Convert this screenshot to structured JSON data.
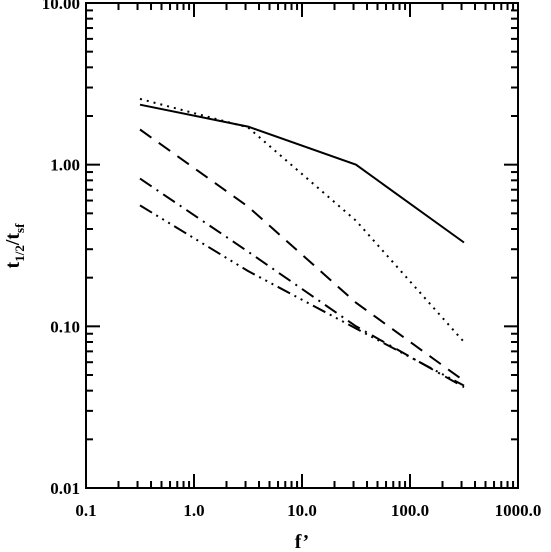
{
  "chart_data": {
    "type": "line",
    "xscale": "log",
    "yscale": "log",
    "xlim": [
      0.1,
      1000.0
    ],
    "ylim": [
      0.01,
      10.0
    ],
    "xlabel": "f’",
    "ylabel": {
      "t": "t",
      "sub1": "1/2",
      "slash": "/t",
      "sub2": "sf"
    },
    "x_ticks": [
      {
        "value": 0.1,
        "label": "0.1"
      },
      {
        "value": 1.0,
        "label": "1.0"
      },
      {
        "value": 10.0,
        "label": "10.0"
      },
      {
        "value": 100.0,
        "label": "100.0"
      },
      {
        "value": 1000.0,
        "label": "1000.0"
      }
    ],
    "y_ticks": [
      {
        "value": 0.01,
        "label": "0.01"
      },
      {
        "value": 0.1,
        "label": "0.10"
      },
      {
        "value": 1.0,
        "label": "1.00"
      },
      {
        "value": 10.0,
        "label": "10.00"
      }
    ],
    "x": [
      0.316,
      3.16,
      31.6,
      316
    ],
    "series": [
      {
        "style": "solid",
        "values": [
          2.35,
          1.72,
          1.0,
          0.33
        ]
      },
      {
        "style": "dotted",
        "values": [
          2.55,
          1.7,
          0.45,
          0.08
        ]
      },
      {
        "style": "dashed",
        "values": [
          1.65,
          0.55,
          0.14,
          0.046
        ]
      },
      {
        "style": "dash-dot",
        "values": [
          0.82,
          0.29,
          0.1,
          0.042
        ]
      },
      {
        "style": "dash-dot-dot-dot",
        "values": [
          0.56,
          0.22,
          0.097,
          0.043
        ]
      }
    ],
    "grid": false,
    "legend": "none"
  }
}
